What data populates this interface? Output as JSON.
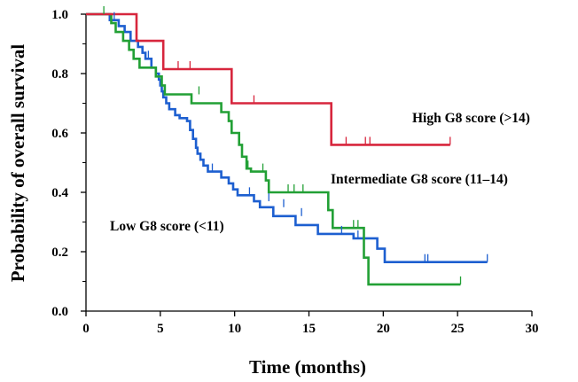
{
  "chart_data": {
    "type": "line",
    "step": true,
    "xlabel": "Time (months)",
    "ylabel": "Probability of overall survival",
    "xlim": [
      0,
      30
    ],
    "ylim": [
      0,
      1.0
    ],
    "xticks": [
      "0",
      "5",
      "10",
      "15",
      "20",
      "25",
      "30"
    ],
    "yticks": [
      "0.0",
      "0.2",
      "0.4",
      "0.6",
      "0.8",
      "1.0"
    ],
    "grid": false,
    "series": [
      {
        "name": "High G8 score (>14)",
        "color": "#d7263d",
        "points": [
          [
            0,
            1.0
          ],
          [
            3.4,
            1.0
          ],
          [
            3.4,
            0.91
          ],
          [
            5.2,
            0.91
          ],
          [
            5.2,
            0.815
          ],
          [
            9.8,
            0.815
          ],
          [
            9.8,
            0.7
          ],
          [
            16.5,
            0.7
          ],
          [
            16.5,
            0.56
          ],
          [
            24.5,
            0.56
          ]
        ],
        "censored": [
          [
            6.2,
            0.815
          ],
          [
            7.0,
            0.815
          ],
          [
            11.3,
            0.7
          ],
          [
            17.5,
            0.56
          ],
          [
            18.8,
            0.56
          ],
          [
            19.1,
            0.56
          ],
          [
            24.5,
            0.56
          ]
        ]
      },
      {
        "name": "Intermediate G8 score (11–14)",
        "color": "#22a035",
        "points": [
          [
            0,
            1.0
          ],
          [
            1.7,
            1.0
          ],
          [
            1.7,
            0.97
          ],
          [
            2.0,
            0.97
          ],
          [
            2.0,
            0.94
          ],
          [
            2.5,
            0.94
          ],
          [
            2.5,
            0.91
          ],
          [
            2.9,
            0.91
          ],
          [
            2.9,
            0.88
          ],
          [
            3.2,
            0.88
          ],
          [
            3.2,
            0.85
          ],
          [
            3.6,
            0.85
          ],
          [
            3.6,
            0.82
          ],
          [
            4.7,
            0.82
          ],
          [
            4.7,
            0.79
          ],
          [
            5.1,
            0.79
          ],
          [
            5.1,
            0.76
          ],
          [
            5.3,
            0.76
          ],
          [
            5.3,
            0.73
          ],
          [
            7.1,
            0.73
          ],
          [
            7.1,
            0.7
          ],
          [
            9.1,
            0.7
          ],
          [
            9.1,
            0.67
          ],
          [
            9.6,
            0.67
          ],
          [
            9.6,
            0.64
          ],
          [
            9.8,
            0.64
          ],
          [
            9.8,
            0.6
          ],
          [
            10.3,
            0.6
          ],
          [
            10.3,
            0.56
          ],
          [
            10.5,
            0.56
          ],
          [
            10.5,
            0.52
          ],
          [
            10.8,
            0.52
          ],
          [
            10.8,
            0.48
          ],
          [
            11.1,
            0.48
          ],
          [
            11.1,
            0.47
          ],
          [
            12.1,
            0.47
          ],
          [
            12.1,
            0.44
          ],
          [
            12.3,
            0.44
          ],
          [
            12.3,
            0.4
          ],
          [
            16.3,
            0.4
          ],
          [
            16.3,
            0.34
          ],
          [
            16.6,
            0.34
          ],
          [
            16.6,
            0.28
          ],
          [
            18.7,
            0.28
          ],
          [
            18.7,
            0.18
          ],
          [
            19.0,
            0.18
          ],
          [
            19.0,
            0.09
          ],
          [
            25.2,
            0.09
          ]
        ],
        "censored": [
          [
            1.2,
            1.0
          ],
          [
            7.6,
            0.73
          ],
          [
            10.9,
            0.48
          ],
          [
            11.9,
            0.47
          ],
          [
            13.6,
            0.4
          ],
          [
            14.0,
            0.4
          ],
          [
            14.6,
            0.4
          ],
          [
            18.0,
            0.28
          ],
          [
            18.3,
            0.28
          ],
          [
            25.2,
            0.09
          ]
        ]
      },
      {
        "name": "Low G8 score (<11)",
        "color": "#1d5fd0",
        "points": [
          [
            0,
            1.0
          ],
          [
            1.6,
            1.0
          ],
          [
            1.6,
            0.98
          ],
          [
            2.2,
            0.98
          ],
          [
            2.2,
            0.96
          ],
          [
            2.6,
            0.96
          ],
          [
            2.6,
            0.94
          ],
          [
            3.0,
            0.94
          ],
          [
            3.0,
            0.91
          ],
          [
            3.5,
            0.91
          ],
          [
            3.5,
            0.89
          ],
          [
            3.8,
            0.89
          ],
          [
            3.8,
            0.87
          ],
          [
            4.0,
            0.87
          ],
          [
            4.0,
            0.85
          ],
          [
            4.4,
            0.85
          ],
          [
            4.4,
            0.82
          ],
          [
            4.7,
            0.82
          ],
          [
            4.7,
            0.8
          ],
          [
            4.9,
            0.8
          ],
          [
            4.9,
            0.78
          ],
          [
            5.0,
            0.78
          ],
          [
            5.0,
            0.76
          ],
          [
            5.1,
            0.76
          ],
          [
            5.1,
            0.74
          ],
          [
            5.2,
            0.74
          ],
          [
            5.2,
            0.72
          ],
          [
            5.4,
            0.72
          ],
          [
            5.4,
            0.7
          ],
          [
            5.6,
            0.7
          ],
          [
            5.6,
            0.68
          ],
          [
            6.0,
            0.68
          ],
          [
            6.0,
            0.66
          ],
          [
            6.3,
            0.66
          ],
          [
            6.3,
            0.65
          ],
          [
            6.8,
            0.65
          ],
          [
            6.8,
            0.64
          ],
          [
            7.0,
            0.64
          ],
          [
            7.0,
            0.61
          ],
          [
            7.2,
            0.61
          ],
          [
            7.2,
            0.58
          ],
          [
            7.4,
            0.58
          ],
          [
            7.4,
            0.55
          ],
          [
            7.5,
            0.55
          ],
          [
            7.5,
            0.53
          ],
          [
            7.7,
            0.53
          ],
          [
            7.7,
            0.51
          ],
          [
            7.9,
            0.51
          ],
          [
            7.9,
            0.49
          ],
          [
            8.2,
            0.49
          ],
          [
            8.2,
            0.47
          ],
          [
            9.1,
            0.47
          ],
          [
            9.1,
            0.45
          ],
          [
            9.6,
            0.45
          ],
          [
            9.6,
            0.43
          ],
          [
            9.9,
            0.43
          ],
          [
            9.9,
            0.41
          ],
          [
            10.2,
            0.41
          ],
          [
            10.2,
            0.39
          ],
          [
            11.3,
            0.39
          ],
          [
            11.3,
            0.37
          ],
          [
            11.7,
            0.37
          ],
          [
            11.7,
            0.35
          ],
          [
            12.6,
            0.35
          ],
          [
            12.6,
            0.32
          ],
          [
            14.1,
            0.32
          ],
          [
            14.1,
            0.29
          ],
          [
            15.6,
            0.29
          ],
          [
            15.6,
            0.26
          ],
          [
            18.0,
            0.26
          ],
          [
            18.0,
            0.245
          ],
          [
            19.6,
            0.245
          ],
          [
            19.6,
            0.21
          ],
          [
            20.1,
            0.21
          ],
          [
            20.1,
            0.165
          ],
          [
            27.0,
            0.165
          ]
        ],
        "censored": [
          [
            1.9,
            0.98
          ],
          [
            4.2,
            0.85
          ],
          [
            8.5,
            0.47
          ],
          [
            11.0,
            0.39
          ],
          [
            12.3,
            0.37
          ],
          [
            13.3,
            0.35
          ],
          [
            14.5,
            0.32
          ],
          [
            17.2,
            0.26
          ],
          [
            18.3,
            0.245
          ],
          [
            22.8,
            0.165
          ],
          [
            23.0,
            0.165
          ],
          [
            27.0,
            0.165
          ]
        ]
      }
    ]
  }
}
